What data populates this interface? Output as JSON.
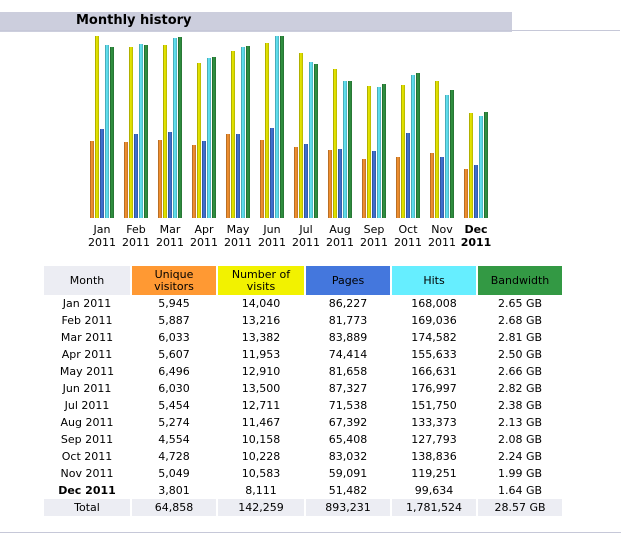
{
  "section": {
    "title": "Monthly history"
  },
  "colors": {
    "visitors": "#ff9933",
    "visits": "#f2f200",
    "pages": "#4477dd",
    "hits": "#66eeff",
    "bandwidth": "#339944",
    "header_bar": "#cccedd",
    "table_header_bg": "#ecedf3"
  },
  "table": {
    "columns": [
      {
        "label": "Month",
        "color": "#ecedf3"
      },
      {
        "label": "Unique visitors",
        "color": "#ff9933"
      },
      {
        "label": "Number of visits",
        "color": "#f2f200"
      },
      {
        "label": "Pages",
        "color": "#4477dd"
      },
      {
        "label": "Hits",
        "color": "#66eeff"
      },
      {
        "label": "Bandwidth",
        "color": "#339944"
      }
    ],
    "rows": [
      {
        "month": "Jan 2011",
        "visitors": "5,945",
        "visits": "14,040",
        "pages": "86,227",
        "hits": "168,008",
        "bandwidth": "2.65 GB"
      },
      {
        "month": "Feb 2011",
        "visitors": "5,887",
        "visits": "13,216",
        "pages": "81,773",
        "hits": "169,036",
        "bandwidth": "2.68 GB"
      },
      {
        "month": "Mar 2011",
        "visitors": "6,033",
        "visits": "13,382",
        "pages": "83,889",
        "hits": "174,582",
        "bandwidth": "2.81 GB"
      },
      {
        "month": "Apr 2011",
        "visitors": "5,607",
        "visits": "11,953",
        "pages": "74,414",
        "hits": "155,633",
        "bandwidth": "2.50 GB"
      },
      {
        "month": "May 2011",
        "visitors": "6,496",
        "visits": "12,910",
        "pages": "81,658",
        "hits": "166,631",
        "bandwidth": "2.66 GB"
      },
      {
        "month": "Jun 2011",
        "visitors": "6,030",
        "visits": "13,500",
        "pages": "87,327",
        "hits": "176,997",
        "bandwidth": "2.82 GB"
      },
      {
        "month": "Jul 2011",
        "visitors": "5,454",
        "visits": "12,711",
        "pages": "71,538",
        "hits": "151,750",
        "bandwidth": "2.38 GB"
      },
      {
        "month": "Aug 2011",
        "visitors": "5,274",
        "visits": "11,467",
        "pages": "67,392",
        "hits": "133,373",
        "bandwidth": "2.13 GB"
      },
      {
        "month": "Sep 2011",
        "visitors": "4,554",
        "visits": "10,158",
        "pages": "65,408",
        "hits": "127,793",
        "bandwidth": "2.08 GB"
      },
      {
        "month": "Oct 2011",
        "visitors": "4,728",
        "visits": "10,228",
        "pages": "83,032",
        "hits": "138,836",
        "bandwidth": "2.24 GB"
      },
      {
        "month": "Nov 2011",
        "visitors": "5,049",
        "visits": "10,583",
        "pages": "59,091",
        "hits": "119,251",
        "bandwidth": "1.99 GB"
      },
      {
        "month": "Dec 2011",
        "visitors": "3,801",
        "visits": "8,111",
        "pages": "51,482",
        "hits": "99,634",
        "bandwidth": "1.64 GB",
        "current": true
      }
    ],
    "total": {
      "month": "Total",
      "visitors": "64,858",
      "visits": "142,259",
      "pages": "893,231",
      "hits": "1,781,524",
      "bandwidth": "28.57 GB"
    }
  },
  "chart_data": {
    "type": "bar",
    "title": "",
    "xlabel": "",
    "ylabel": "",
    "grid": false,
    "categories": [
      {
        "month": "Jan",
        "year": "2011"
      },
      {
        "month": "Feb",
        "year": "2011"
      },
      {
        "month": "Mar",
        "year": "2011"
      },
      {
        "month": "Apr",
        "year": "2011"
      },
      {
        "month": "May",
        "year": "2011"
      },
      {
        "month": "Jun",
        "year": "2011"
      },
      {
        "month": "Jul",
        "year": "2011"
      },
      {
        "month": "Aug",
        "year": "2011"
      },
      {
        "month": "Sep",
        "year": "2011"
      },
      {
        "month": "Oct",
        "year": "2011"
      },
      {
        "month": "Nov",
        "year": "2011"
      },
      {
        "month": "Dec",
        "year": "2011",
        "current": true
      }
    ],
    "scale_groups": [
      {
        "members": [
          "visitors",
          "visits"
        ],
        "max": 14040
      },
      {
        "members": [
          "pages",
          "hits"
        ],
        "max": 176997
      },
      {
        "members": [
          "bandwidth"
        ],
        "max": 2.82
      }
    ],
    "series": [
      {
        "key": "visitors",
        "color": "#ff9933",
        "values": [
          5945,
          5887,
          6033,
          5607,
          6496,
          6030,
          5454,
          5274,
          4554,
          4728,
          5049,
          3801
        ]
      },
      {
        "key": "visits",
        "color": "#f2f200",
        "values": [
          14040,
          13216,
          13382,
          11953,
          12910,
          13500,
          12711,
          11467,
          10158,
          10228,
          10583,
          8111
        ]
      },
      {
        "key": "pages",
        "color": "#4477dd",
        "values": [
          86227,
          81773,
          83889,
          74414,
          81658,
          87327,
          71538,
          67392,
          65408,
          83032,
          59091,
          51482
        ]
      },
      {
        "key": "hits",
        "color": "#66eeff",
        "values": [
          168008,
          169036,
          174582,
          155633,
          166631,
          176997,
          151750,
          133373,
          127793,
          138836,
          119251,
          99634
        ]
      },
      {
        "key": "bandwidth",
        "color": "#339944",
        "values": [
          2.65,
          2.68,
          2.81,
          2.5,
          2.66,
          2.82,
          2.38,
          2.13,
          2.08,
          2.24,
          1.99,
          1.64
        ]
      }
    ]
  }
}
